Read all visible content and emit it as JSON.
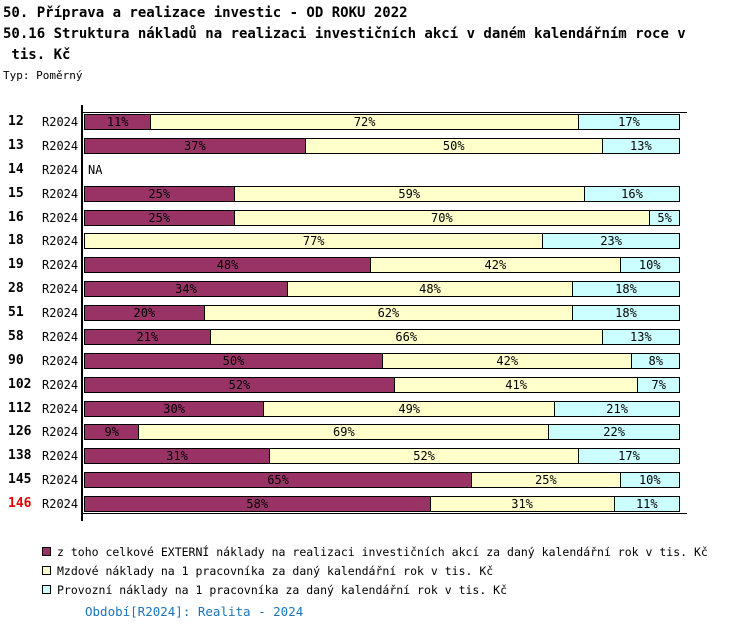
{
  "header": {
    "title_line1": "50. Příprava a realizace investic - OD ROKU 2022",
    "title_line2": "50.16 Struktura nákladů na realizaci investičních akcí v daném kalendářním roce v",
    "title_line3": " tis. Kč",
    "type_label": "Typ: Poměrný"
  },
  "chart_data": {
    "type": "bar",
    "orientation": "horizontal",
    "stacked": true,
    "unit": "%",
    "xlim": [
      0,
      100
    ],
    "grid": false,
    "legend_position": "bottom",
    "period_label": "R2024",
    "na_text": "NA",
    "categories": [
      "12",
      "13",
      "14",
      "15",
      "16",
      "18",
      "19",
      "28",
      "51",
      "58",
      "90",
      "102",
      "112",
      "126",
      "138",
      "145",
      "146"
    ],
    "highlight_category": "146",
    "highlight_color": "#e60000",
    "series": [
      {
        "name": "z toho celkové EXTERNÍ náklady na realizaci investičních akcí za daný kalendářní rok v tis. Kč",
        "color": "#993366",
        "values": [
          11,
          37,
          null,
          25,
          25,
          0,
          48,
          34,
          20,
          21,
          50,
          52,
          30,
          9,
          31,
          65,
          58
        ]
      },
      {
        "name": "Mzdové náklady na 1 pracovníka za daný kalendářní rok v tis. Kč",
        "color": "#FFFFCC",
        "values": [
          72,
          50,
          null,
          59,
          70,
          77,
          42,
          48,
          62,
          66,
          42,
          41,
          49,
          69,
          52,
          25,
          31
        ]
      },
      {
        "name": "Provozní náklady na 1 pracovníka za daný kalendářní rok v tis. Kč",
        "color": "#CCFFFF",
        "values": [
          17,
          13,
          null,
          16,
          5,
          23,
          10,
          18,
          18,
          13,
          8,
          7,
          21,
          22,
          17,
          10,
          11
        ]
      }
    ]
  },
  "footer": {
    "text": "Období[R2024]: Realita - 2024",
    "color": "#1a75bb"
  }
}
